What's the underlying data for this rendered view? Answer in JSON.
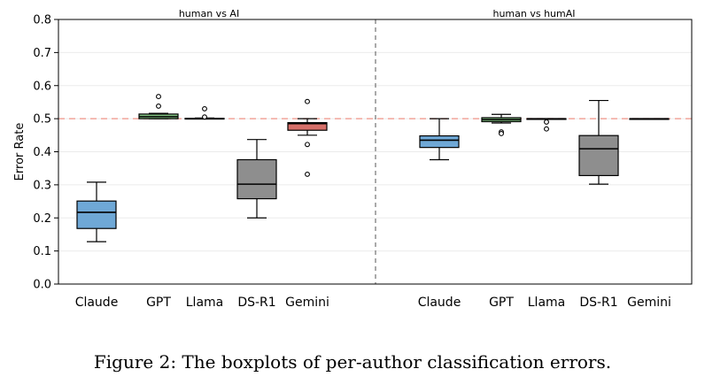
{
  "caption": "Figure 2: The boxplots of per-author classification errors.",
  "chart_data": {
    "type": "box",
    "ylabel": "Error Rate",
    "ylim": [
      0.0,
      0.8
    ],
    "yticks": [
      "0.0",
      "0.1",
      "0.2",
      "0.3",
      "0.4",
      "0.5",
      "0.6",
      "0.7",
      "0.8"
    ],
    "reference_line": {
      "y": 0.5,
      "style": "dashed",
      "color": "#f2a59b"
    },
    "grid": "horizontal, faint",
    "colors": {
      "Claude": "#6fa8d6",
      "GPT": "#7fbf7f",
      "Llama": "#9ccf9c",
      "DS-R1": "#8e8e8e",
      "Gemini": "#d6706a"
    },
    "panels": [
      {
        "title": "human vs AI",
        "boxes": [
          {
            "label": "Claude",
            "whisker_low": 0.128,
            "q1": 0.168,
            "median": 0.217,
            "q3": 0.251,
            "whisker_high": 0.308,
            "outliers": []
          },
          {
            "label": "GPT",
            "whisker_low": 0.5,
            "q1": 0.5,
            "median": 0.506,
            "q3": 0.514,
            "whisker_high": 0.516,
            "outliers": [
              0.567,
              0.538
            ]
          },
          {
            "label": "Llama",
            "whisker_low": 0.5,
            "q1": 0.5,
            "median": 0.5,
            "q3": 0.501,
            "whisker_high": 0.502,
            "outliers": [
              0.53,
              0.505
            ]
          },
          {
            "label": "DS-R1",
            "whisker_low": 0.2,
            "q1": 0.258,
            "median": 0.302,
            "q3": 0.376,
            "whisker_high": 0.437,
            "outliers": []
          },
          {
            "label": "Gemini",
            "whisker_low": 0.45,
            "q1": 0.465,
            "median": 0.485,
            "q3": 0.488,
            "whisker_high": 0.5,
            "outliers": [
              0.552,
              0.422,
              0.332
            ]
          }
        ]
      },
      {
        "title": "human vs humAI",
        "boxes": [
          {
            "label": "Claude",
            "whisker_low": 0.376,
            "q1": 0.413,
            "median": 0.435,
            "q3": 0.448,
            "whisker_high": 0.5,
            "outliers": []
          },
          {
            "label": "GPT",
            "whisker_low": 0.487,
            "q1": 0.491,
            "median": 0.497,
            "q3": 0.503,
            "whisker_high": 0.513,
            "outliers": [
              0.46,
              0.455
            ]
          },
          {
            "label": "Llama",
            "whisker_low": 0.5,
            "q1": 0.5,
            "median": 0.5,
            "q3": 0.5,
            "whisker_high": 0.5,
            "outliers": [
              0.49,
              0.469
            ]
          },
          {
            "label": "DS-R1",
            "whisker_low": 0.302,
            "q1": 0.328,
            "median": 0.409,
            "q3": 0.449,
            "whisker_high": 0.555,
            "outliers": []
          },
          {
            "label": "Gemini",
            "whisker_low": 0.5,
            "q1": 0.5,
            "median": 0.5,
            "q3": 0.5,
            "whisker_high": 0.5,
            "outliers": []
          }
        ]
      }
    ]
  }
}
